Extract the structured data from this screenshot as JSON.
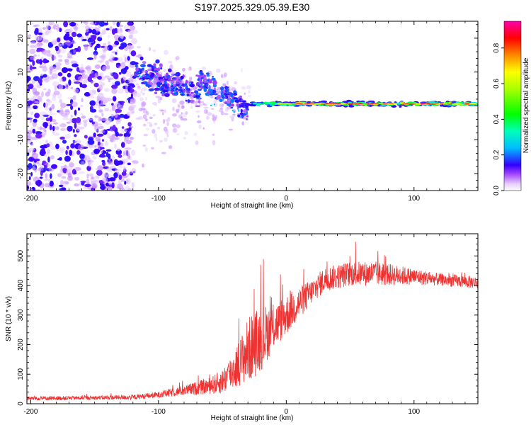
{
  "chart_data": [
    {
      "type": "heatmap",
      "title": "S197.2025.329.05.39.E30",
      "xlabel": "Height of straight line (km)",
      "ylabel": "Frequency (Hz)",
      "xlim": [
        -203,
        150
      ],
      "ylim": [
        -25,
        25
      ],
      "xticks": [
        -200,
        -100,
        0,
        100
      ],
      "yticks": [
        -20,
        -10,
        0,
        10,
        20
      ],
      "colorbar": {
        "label": "Normalized spectral amplitude",
        "range": [
          0,
          0.95
        ],
        "ticks": [
          0.0,
          0.2,
          0.4,
          0.6,
          0.8
        ]
      },
      "description_points": [
        {
          "x": -200,
          "y": 0,
          "amp": 0.1
        },
        {
          "x": -120,
          "y": 10,
          "amp": 0.3
        },
        {
          "x": -55,
          "y": 5,
          "amp": 0.35
        },
        {
          "x": -30,
          "y": 1,
          "amp": 0.4
        },
        {
          "x": 0,
          "y": 0,
          "amp": 0.9
        },
        {
          "x": 50,
          "y": 0.5,
          "amp": 0.9
        },
        {
          "x": 100,
          "y": 0.7,
          "amp": 0.9
        },
        {
          "x": 150,
          "y": 1,
          "amp": 0.8
        }
      ]
    },
    {
      "type": "line",
      "xlabel": "Height of straight line (km)",
      "ylabel": "SNR (10 * v/v)",
      "xlim": [
        -203,
        150
      ],
      "ylim": [
        0,
        575
      ],
      "xticks": [
        -200,
        -100,
        0,
        100
      ],
      "yticks": [
        0,
        100,
        200,
        300,
        400,
        500
      ],
      "color": "#ee3333",
      "envelope": {
        "x": [
          -203,
          -150,
          -120,
          -100,
          -80,
          -60,
          -50,
          -40,
          -35,
          -30,
          -25,
          -20,
          -10,
          0,
          10,
          20,
          30,
          50,
          70,
          100,
          120,
          150
        ],
        "baseline": [
          18,
          20,
          22,
          30,
          45,
          60,
          75,
          120,
          150,
          180,
          200,
          220,
          260,
          300,
          340,
          380,
          420,
          440,
          440,
          430,
          420,
          410
        ],
        "amplitude": [
          10,
          10,
          12,
          15,
          25,
          40,
          60,
          100,
          120,
          160,
          160,
          160,
          110,
          100,
          80,
          60,
          60,
          60,
          60,
          40,
          30,
          30
        ]
      }
    }
  ]
}
